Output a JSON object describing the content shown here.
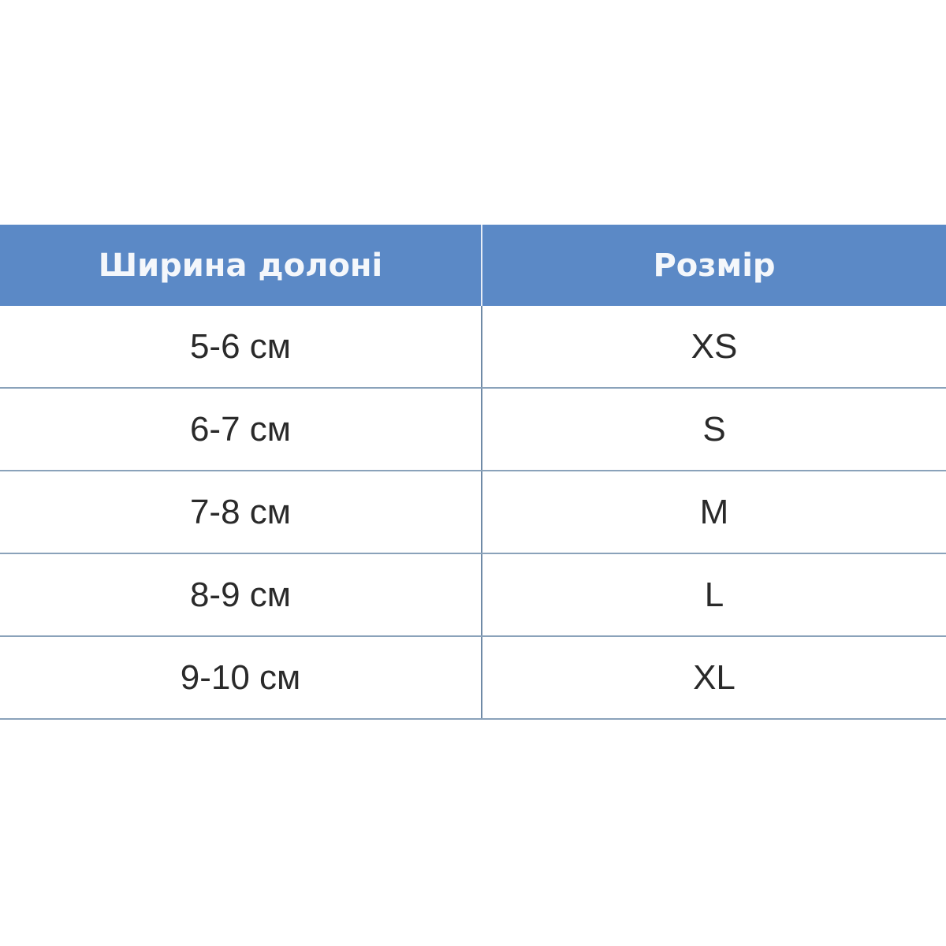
{
  "table": {
    "headers": [
      "Ширина долоні",
      "Розмір"
    ],
    "rows": [
      [
        "5-6 см",
        "XS"
      ],
      [
        "6-7 см",
        "S"
      ],
      [
        "7-8 см",
        "M"
      ],
      [
        "8-9 см",
        "L"
      ],
      [
        "9-10 см",
        "XL"
      ]
    ]
  },
  "colors": {
    "header_bg": "#5b89c6",
    "header_text": "#f4f7fb",
    "border": "#8aa2ba"
  }
}
